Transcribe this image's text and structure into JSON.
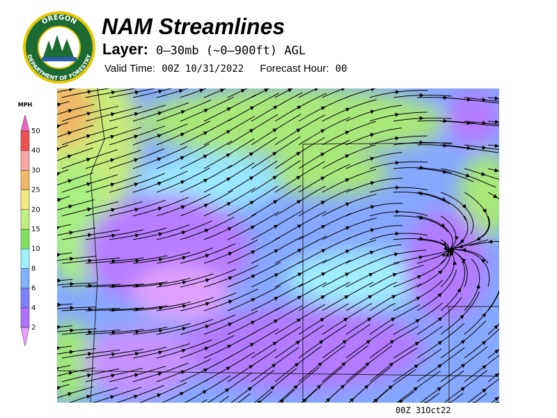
{
  "logo": {
    "top": "OREGON",
    "bottom": "DEPARTMENT OF FORESTRY"
  },
  "header": {
    "title": "NAM Streamlines",
    "layer_label": "Layer:",
    "layer_value": "0–30mb (~0–900ft) AGL",
    "valid_time_label": "Valid Time:",
    "valid_time_value": "00Z 10/31/2022",
    "forecast_hour_label": "Forecast Hour:",
    "forecast_hour_value": "00"
  },
  "scale": {
    "unit": "MPH",
    "ticks": [
      2,
      4,
      6,
      8,
      10,
      15,
      20,
      25,
      30,
      40,
      50
    ],
    "colors": [
      "#e8a0ff",
      "#b070ff",
      "#8080ff",
      "#80b0ff",
      "#a0f0ff",
      "#80e060",
      "#c0f080",
      "#f0e880",
      "#f0b868",
      "#f8a8a8",
      "#f05050",
      "#f060c0"
    ]
  },
  "footer": {
    "stamp": "00Z 31Oct22"
  }
}
